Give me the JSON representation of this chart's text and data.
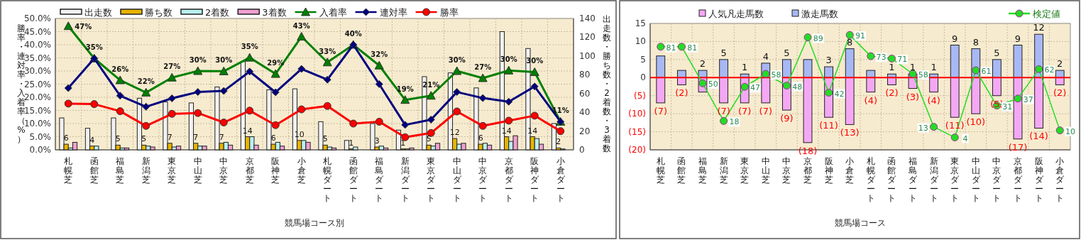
{
  "chart_data": [
    {
      "type": "bar",
      "xlabel": "競馬場コース別",
      "ylabel": "勝率・連対率・入着率（%）",
      "y2label": "出走数・勝ち数・2着数・3着数",
      "categories": [
        "札幌芝",
        "函館芝",
        "福島芝",
        "新潟芝",
        "東京芝",
        "中山芝",
        "中京芝",
        "京都芝",
        "阪神芝",
        "小倉芝",
        "札幌ダート",
        "函館ダート",
        "福島ダート",
        "新潟ダート",
        "東京ダート",
        "中山ダート",
        "中京ダート",
        "京都ダート",
        "阪神ダート",
        "小倉ダート"
      ],
      "ylim": [
        0,
        50
      ],
      "yticks": [
        {
          "value": 0,
          "label": "0.0%"
        },
        {
          "value": 5,
          "label": "5.0%"
        },
        {
          "value": 10,
          "label": "10.0%"
        },
        {
          "value": 15,
          "label": "15.0%"
        },
        {
          "value": 20,
          "label": "20.0%"
        },
        {
          "value": 25,
          "label": "25.0%"
        },
        {
          "value": 30,
          "label": "30.0%"
        },
        {
          "value": 35,
          "label": "35.0%"
        },
        {
          "value": 40,
          "label": "40.0%"
        },
        {
          "value": 45,
          "label": "45.0%"
        },
        {
          "value": 50,
          "label": "50.0%"
        }
      ],
      "y2lim": [
        0,
        140
      ],
      "y2ticks": [
        0,
        20,
        40,
        60,
        80,
        100,
        120,
        140
      ],
      "grid": true,
      "legend": "top",
      "series": [
        {
          "name": "出走数",
          "type": "bar",
          "axis": "y2",
          "color": "#f2f2f2",
          "values": [
            34,
            23,
            34,
            55,
            51,
            50,
            67,
            94,
            64,
            65,
            30,
            10,
            28,
            21,
            78,
            82,
            66,
            126,
            108,
            28
          ]
        },
        {
          "name": "勝ち数",
          "type": "bar",
          "axis": "y2",
          "color": "#e8b400",
          "values": [
            6,
            4,
            5,
            5,
            7,
            7,
            7,
            14,
            6,
            10,
            5,
            1,
            3,
            1,
            5,
            12,
            6,
            14,
            14,
            2
          ],
          "value_labels": [
            "6",
            "4",
            "5",
            "5",
            "7",
            "7",
            "7",
            "14",
            "6",
            "10",
            "5",
            "1",
            "3",
            "1",
            "5",
            "12",
            "6",
            "14",
            "14",
            "2"
          ]
        },
        {
          "name": "2着数",
          "type": "bar",
          "axis": "y2",
          "color": "#b8f0f0",
          "values": [
            2,
            4,
            2,
            4,
            3,
            4,
            8,
            14,
            8,
            10,
            3,
            3,
            4,
            1,
            4,
            6,
            7,
            9,
            12,
            1
          ]
        },
        {
          "name": "3着数",
          "type": "bar",
          "axis": "y2",
          "color": "#f0a0d0",
          "values": [
            8,
            0,
            2,
            3,
            4,
            4,
            5,
            5,
            4,
            8,
            2,
            0,
            2,
            2,
            7,
            7,
            5,
            15,
            6,
            0
          ]
        },
        {
          "name": "入着率",
          "type": "line",
          "axis": "y",
          "color": "#008000",
          "marker": "triangle",
          "values": [
            47.1,
            34.8,
            26.5,
            21.8,
            27.5,
            30.0,
            29.9,
            35.1,
            28.9,
            43.1,
            33.3,
            40.0,
            32.1,
            19.0,
            20.6,
            30.0,
            27.3,
            30.2,
            29.6,
            10.7
          ],
          "value_labels": [
            "47%",
            "35%",
            "26%",
            "22%",
            "27%",
            "30%",
            "30%",
            "35%",
            "29%",
            "43%",
            "33%",
            "40%",
            "32%",
            "19%",
            "21%",
            "30%",
            "27%",
            "30%",
            "30%",
            "11%"
          ]
        },
        {
          "name": "連対率",
          "type": "line",
          "axis": "y",
          "color": "#000080",
          "marker": "diamond",
          "values": [
            23.5,
            34.8,
            20.6,
            16.4,
            19.6,
            22.0,
            22.4,
            29.8,
            21.9,
            30.8,
            26.7,
            40.0,
            25.0,
            9.5,
            11.5,
            22.0,
            19.7,
            18.3,
            24.1,
            10.7
          ]
        },
        {
          "name": "勝率",
          "type": "line",
          "axis": "y",
          "color": "#ff0000",
          "marker": "circle",
          "values": [
            17.6,
            17.4,
            14.7,
            9.1,
            13.7,
            14.0,
            10.4,
            14.9,
            9.4,
            15.4,
            16.7,
            10.0,
            10.7,
            4.8,
            6.4,
            14.6,
            9.1,
            11.1,
            13.0,
            7.1
          ]
        }
      ]
    },
    {
      "type": "bar",
      "stacked": true,
      "xlabel": "競馬場コース",
      "categories": [
        "札幌芝",
        "函館芝",
        "福島芝",
        "新潟芝",
        "東京芝",
        "中山芝",
        "中京芝",
        "京都芝",
        "阪神芝",
        "小倉芝",
        "札幌ダート",
        "函館ダート",
        "福島ダート",
        "新潟ダート",
        "東京ダート",
        "中山ダート",
        "中京ダート",
        "京都ダート",
        "阪神ダート",
        "小倉ダート"
      ],
      "ylim": [
        -20,
        15
      ],
      "yticks": [
        {
          "value": -20,
          "label": "(20)"
        },
        {
          "value": -15,
          "label": "(15)"
        },
        {
          "value": -10,
          "label": "(10)"
        },
        {
          "value": -5,
          "label": "(5)"
        },
        0,
        5,
        10,
        15
      ],
      "y2lim": [
        -6.5,
        100.8
      ],
      "grid": true,
      "legend": "top",
      "ref_lines": [
        {
          "axis": "y",
          "value": 0,
          "color": "#ff0000"
        }
      ],
      "series": [
        {
          "name": "人気凡走馬数",
          "type": "bar",
          "color": "#f4a8f4",
          "values": [
            -7,
            -2,
            -4,
            -7,
            -7,
            -7,
            -9,
            -18,
            -11,
            -13,
            -4,
            -2,
            -3,
            -4,
            -11,
            -10,
            -5,
            -17,
            -14,
            -2
          ],
          "value_labels": [
            "(7)",
            "(2)",
            null,
            "(7)",
            "(7)",
            "(7)",
            "(9)",
            "(18)",
            "(11)",
            "(13)",
            "(4)",
            "(2)",
            "(3)",
            "(4)",
            "(11)",
            "(10)",
            "(5)",
            "(17)",
            "(14)",
            "(2)"
          ]
        },
        {
          "name": "激走馬数",
          "type": "bar",
          "color": "#a8b8f4",
          "values": [
            6,
            2,
            2,
            5,
            1,
            4,
            5,
            5,
            3,
            8,
            2,
            1,
            1,
            1,
            9,
            8,
            5,
            9,
            12,
            2
          ],
          "value_labels": [
            null,
            null,
            "2",
            "5",
            "1",
            "4",
            "5",
            null,
            "3",
            "8",
            null,
            "1",
            "1",
            "1",
            "9",
            "8",
            "5",
            "9",
            "12",
            "2"
          ]
        },
        {
          "name": "検定値",
          "type": "line",
          "axis": "y2",
          "color": "#22dd22",
          "marker": "circle",
          "values": [
            81,
            81,
            50,
            18,
            47,
            58,
            48,
            89,
            42,
            91,
            73,
            71,
            58,
            13,
            4,
            61,
            31,
            37,
            62,
            10
          ],
          "value_labels": [
            "81",
            "81",
            "50",
            "18",
            "47",
            "58",
            "48",
            "89",
            "42",
            "91",
            "73",
            "71",
            "58",
            "13",
            "4",
            "61",
            "31",
            "37",
            "62",
            "10"
          ]
        }
      ]
    }
  ]
}
